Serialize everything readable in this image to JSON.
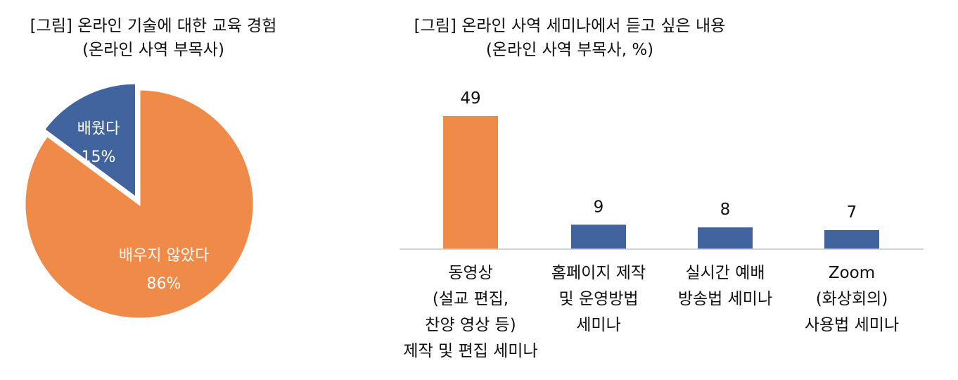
{
  "chart_data": [
    {
      "type": "pie",
      "title_lines": [
        "[그림] 온라인 기술에 대한 교육 경험",
        "(온라인 사역 부목사)"
      ],
      "slices": [
        {
          "label": "배웠다",
          "value": 15,
          "value_label": "15%",
          "color": "#41649f",
          "exploded": true
        },
        {
          "label": "배우지 않았다",
          "value": 86,
          "value_label": "86%",
          "color": "#ef8a48",
          "exploded": false
        }
      ]
    },
    {
      "type": "bar",
      "title_lines": [
        "[그림] 온라인 사역 세미나에서 듣고 싶은 내용",
        "(온라인 사역 부목사, %)"
      ],
      "ylim": [
        0,
        55
      ],
      "categories": [
        {
          "lines": [
            "동영상",
            "(설교 편집,",
            "찬양 영상 등)",
            "제작 및 편집 세미나"
          ],
          "value": 49,
          "color": "#ef8a48"
        },
        {
          "lines": [
            "홈페이지 제작",
            "및 운영방법",
            "세미나"
          ],
          "value": 9,
          "color": "#41649f"
        },
        {
          "lines": [
            "실시간 예배",
            "방송법 세미나"
          ],
          "value": 8,
          "color": "#41649f"
        },
        {
          "lines": [
            "Zoom",
            "(화상회의)",
            "사용법 세미나"
          ],
          "value": 7,
          "color": "#41649f"
        }
      ]
    }
  ]
}
